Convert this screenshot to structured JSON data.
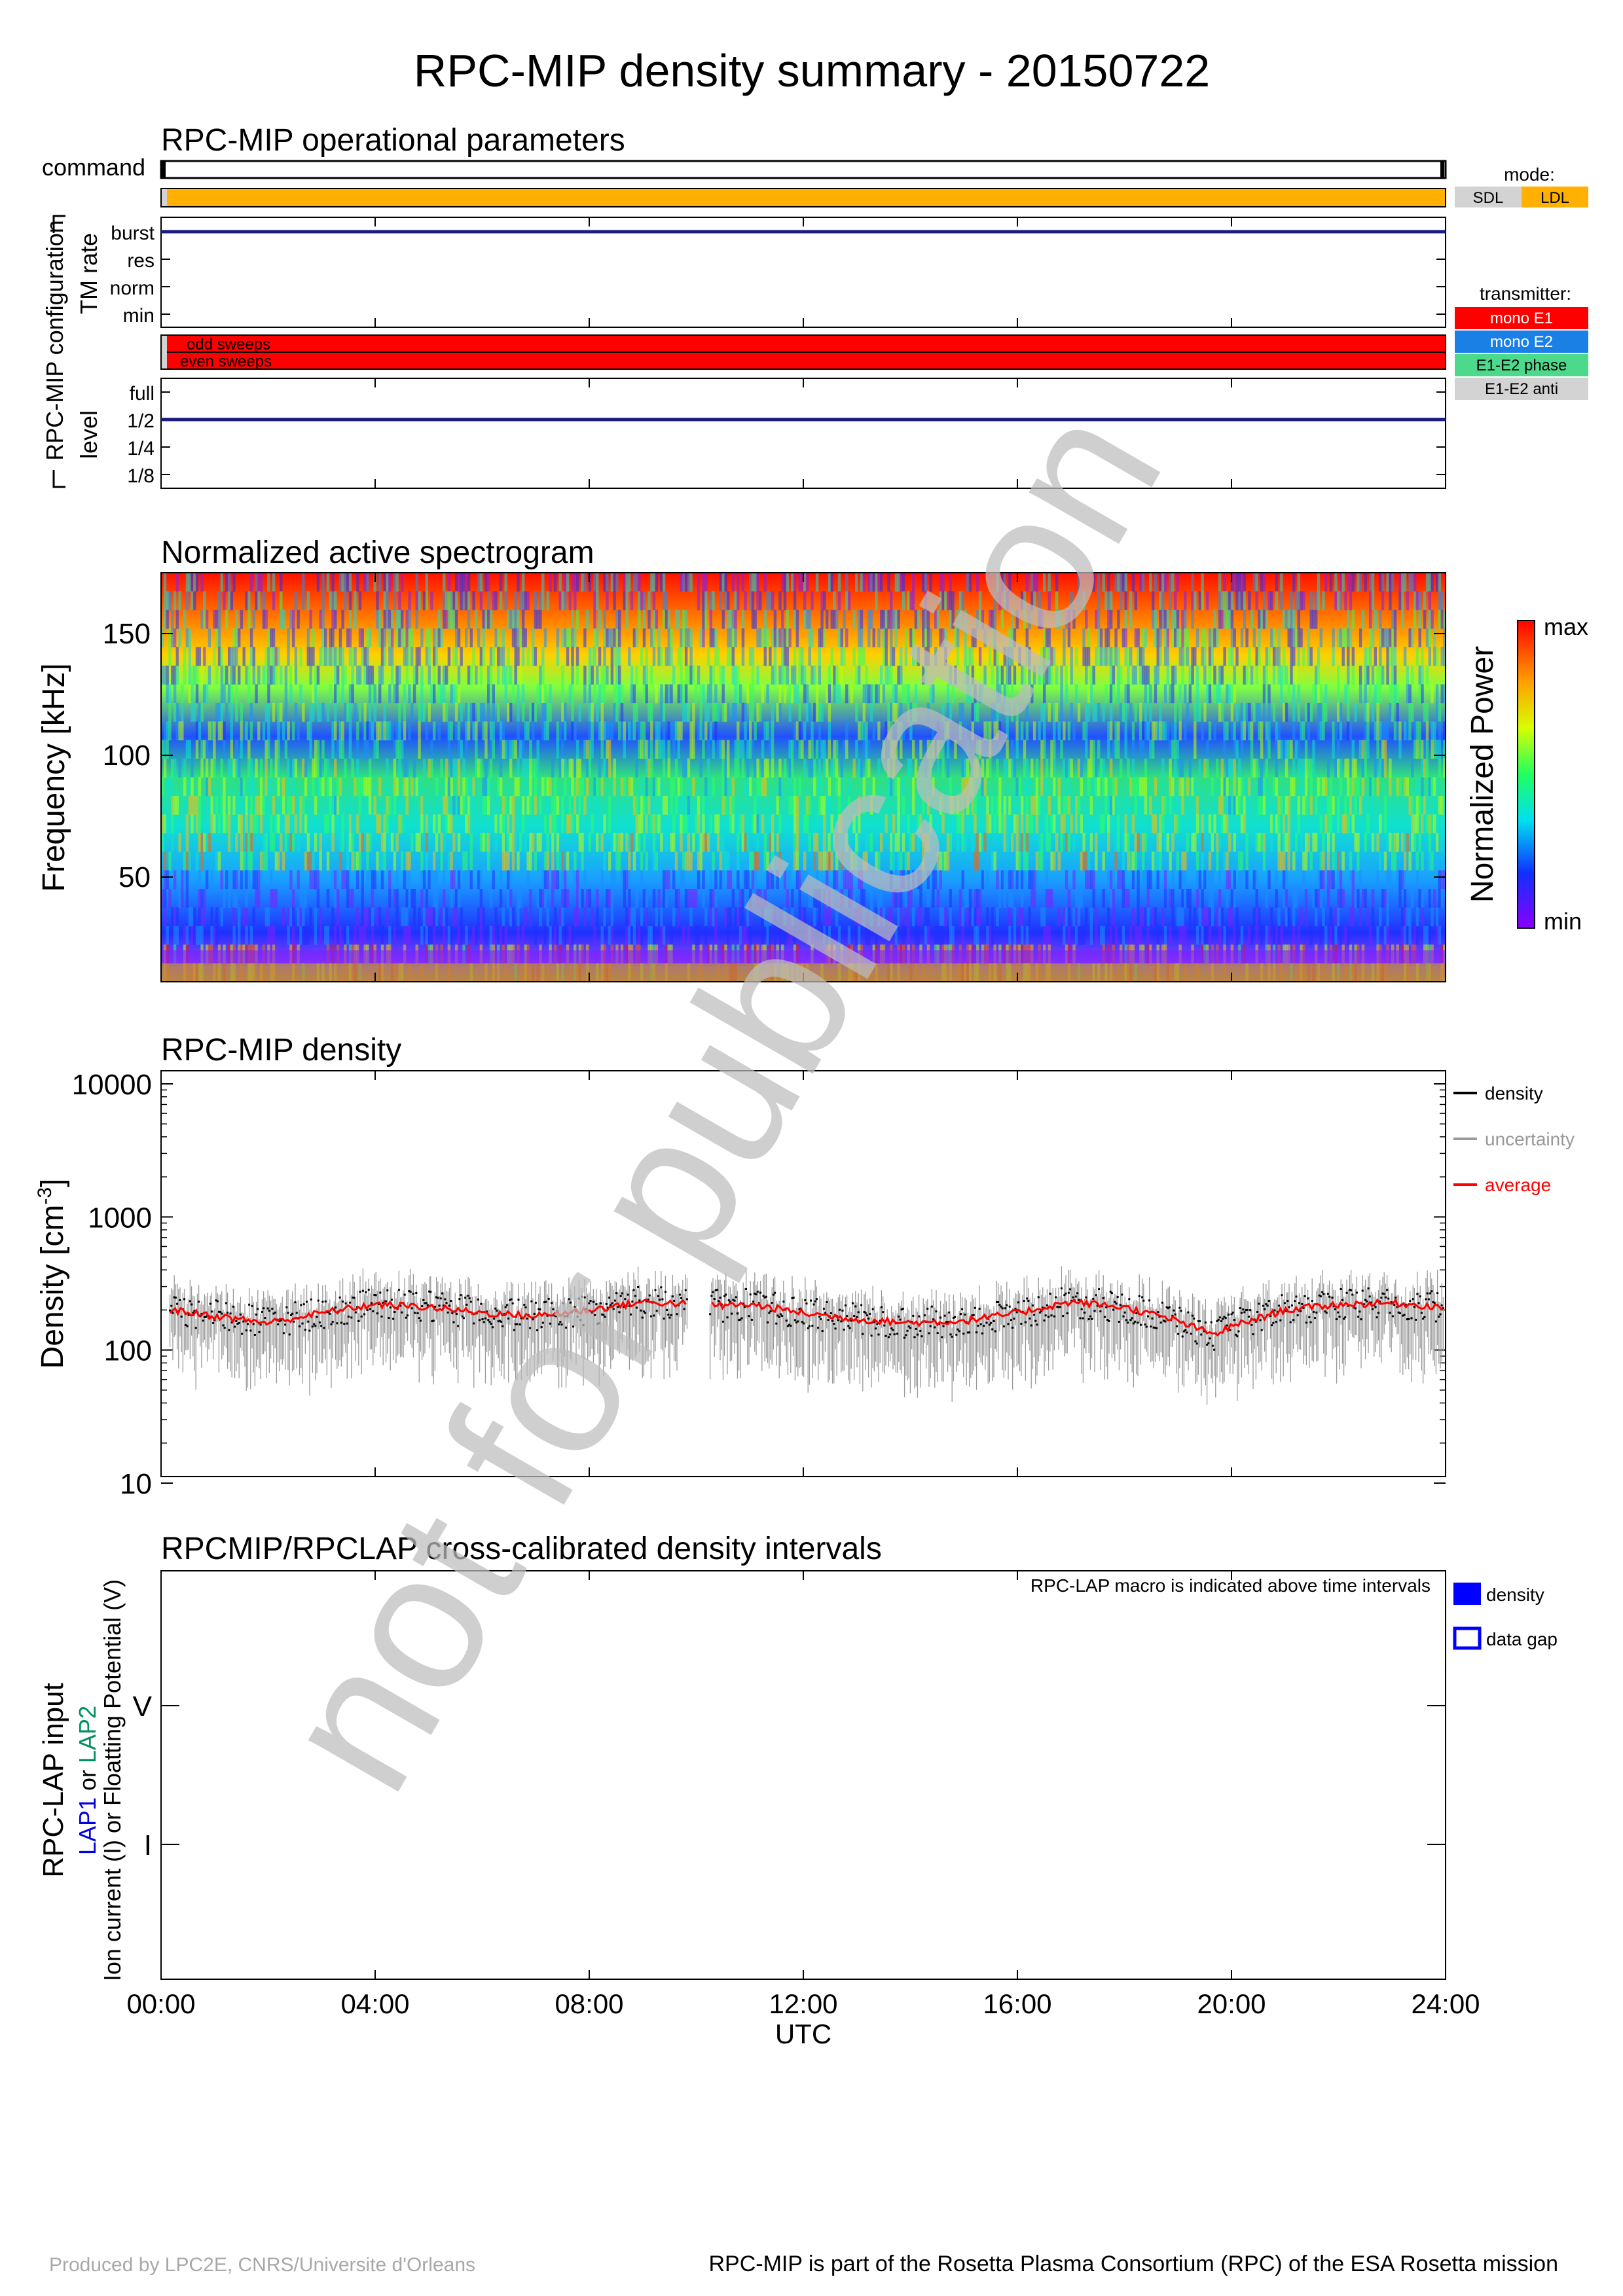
{
  "title": "RPC-MIP density summary - 20150722",
  "watermark": "not for publication",
  "ops": {
    "title": "RPC-MIP operational parameters",
    "command_label": "command",
    "config_label": "RPC-MIP configuration",
    "tm_label": "TM rate",
    "tm_levels": [
      "burst",
      "res",
      "norm",
      "min"
    ],
    "tm_value": "burst",
    "sweep_labels": [
      "odd sweeps",
      "even sweeps"
    ],
    "level_label": "level",
    "level_levels": [
      "full",
      "1/2",
      "1/4",
      "1/8"
    ],
    "level_value": "1/2",
    "mode_title": "mode:",
    "mode_items": [
      {
        "label": "SDL",
        "color": "#d3d3d3"
      },
      {
        "label": "LDL",
        "color": "#ffb000"
      }
    ],
    "transmitter_title": "transmitter:",
    "transmitter_items": [
      {
        "label": "mono E1",
        "color": "#ff0000"
      },
      {
        "label": "mono E2",
        "color": "#1a80e6"
      },
      {
        "label": "E1-E2 phase",
        "color": "#4dd98c"
      },
      {
        "label": "E1-E2 anti",
        "color": "#d3d3d3"
      }
    ]
  },
  "spectrogram": {
    "title": "Normalized active spectrogram",
    "ylabel": "Frequency [kHz]",
    "yticks": [
      "50",
      "100",
      "150"
    ],
    "colorbar_label": "Normalized Power",
    "cb_max": "max",
    "cb_min": "min"
  },
  "density": {
    "title": "RPC-MIP density",
    "ylabel": "Density [cm",
    "ylabel_sup": "-3",
    "ylabel_end": "]",
    "yticks": [
      "10",
      "100",
      "1000",
      "10000"
    ],
    "legend": [
      {
        "label": "density",
        "color": "#000000"
      },
      {
        "label": "uncertainty",
        "color": "#999999"
      },
      {
        "label": "average",
        "color": "#ff0000"
      }
    ]
  },
  "lap": {
    "title": "RPCMIP/RPCLAP cross-calibrated density intervals",
    "note": "RPC-LAP macro is indicated above time intervals",
    "ylabel1": "RPC-LAP input",
    "ylabel2a": "LAP1",
    "ylabel2b": " or ",
    "ylabel2c": "LAP2",
    "ylabel3": "Ion current (I) or Floatting Potential (V)",
    "yticks": [
      "V",
      "I"
    ],
    "legend": [
      "density",
      "data gap"
    ]
  },
  "xaxis": {
    "ticks": [
      "00:00",
      "04:00",
      "08:00",
      "12:00",
      "16:00",
      "20:00",
      "24:00"
    ],
    "label": "UTC"
  },
  "footer": {
    "left": "Produced by LPC2E, CNRS/Universite d'Orleans",
    "right": "RPC-MIP is part of the Rosetta Plasma Consortium (RPC) of the ESA Rosetta mission"
  },
  "chart_data": [
    {
      "type": "line",
      "title": "RPC-MIP density",
      "xlabel": "UTC",
      "ylabel": "Density [cm-3]",
      "yscale": "log",
      "ylim": [
        10,
        10000
      ],
      "xlim": [
        "00:00",
        "24:00"
      ],
      "data_gap": [
        "09:50",
        "10:15"
      ],
      "series": [
        {
          "name": "average",
          "x": [
            "00:10",
            "01:00",
            "02:00",
            "03:00",
            "04:00",
            "05:00",
            "06:00",
            "07:00",
            "08:00",
            "09:00",
            "10:30",
            "11:00",
            "12:00",
            "13:00",
            "14:00",
            "15:00",
            "16:00",
            "17:00",
            "18:00",
            "19:00",
            "19:40",
            "20:00",
            "21:00",
            "22:00",
            "23:00",
            "24:00"
          ],
          "y": [
            200,
            180,
            160,
            190,
            220,
            210,
            190,
            180,
            200,
            230,
            215,
            220,
            190,
            170,
            160,
            165,
            190,
            230,
            210,
            165,
            130,
            150,
            200,
            220,
            225,
            210
          ]
        }
      ]
    },
    {
      "type": "heatmap",
      "title": "Normalized active spectrogram",
      "ylabel": "Frequency [kHz]",
      "ylim": [
        7,
        175
      ],
      "xlim": [
        "00:00",
        "24:00"
      ],
      "colorbar": [
        "min",
        "max"
      ]
    }
  ]
}
